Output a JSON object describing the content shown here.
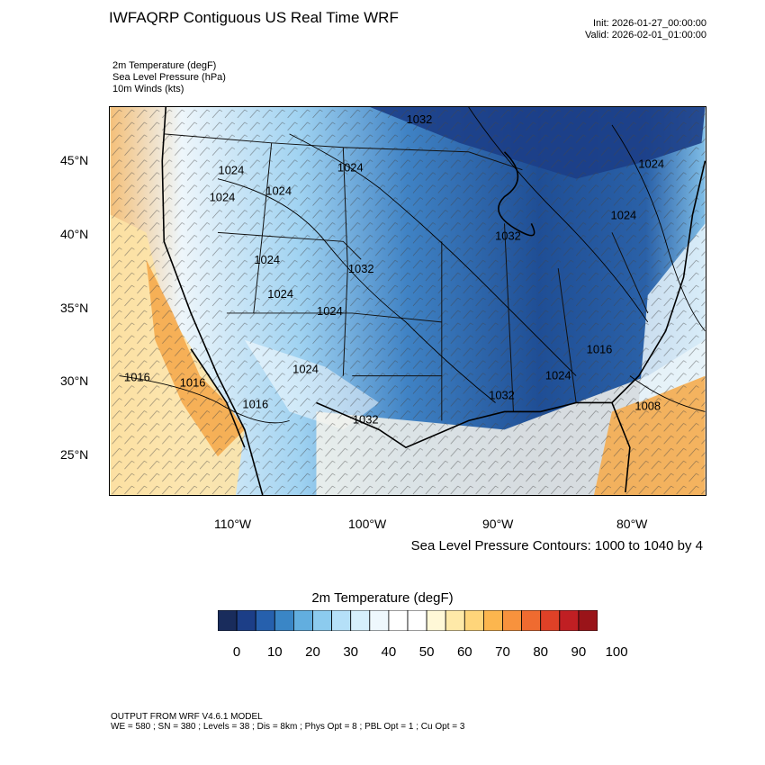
{
  "header": {
    "title": "IWFAQRP Contiguous US Real Time WRF",
    "init": "Init: 2026-01-27_00:00:00",
    "valid": "Valid: 2026-02-01_01:00:00"
  },
  "fields": [
    "2m Temperature   (degF)",
    "Sea Level Pressure   (hPa)",
    "10m Winds   (kts)"
  ],
  "axes": {
    "lat_labels": [
      "45°N",
      "40°N",
      "35°N",
      "30°N",
      "25°N"
    ],
    "lon_labels": [
      "110°W",
      "100°W",
      "90°W",
      "80°W"
    ]
  },
  "map": {
    "pressure_labels": [
      {
        "text": "1032"
      },
      {
        "text": "1024"
      },
      {
        "text": "1024"
      },
      {
        "text": "1024"
      },
      {
        "text": "1024"
      },
      {
        "text": "1024"
      },
      {
        "text": "1024"
      },
      {
        "text": "1032"
      },
      {
        "text": "1032"
      },
      {
        "text": "1024"
      },
      {
        "text": "1024"
      },
      {
        "text": "1024"
      },
      {
        "text": "1024"
      },
      {
        "text": "1016"
      },
      {
        "text": "1016"
      },
      {
        "text": "1016"
      },
      {
        "text": "1016"
      },
      {
        "text": "1032"
      },
      {
        "text": "1032"
      },
      {
        "text": "1024"
      },
      {
        "text": "1008"
      }
    ]
  },
  "slp_note": "Sea Level Pressure Contours: 1000 to 1040 by 4",
  "colorbar": {
    "title": "2m Temperature  (degF)",
    "colors": [
      "#192c5c",
      "#1c3e87",
      "#2660ad",
      "#3a86c6",
      "#62aedf",
      "#8ccbee",
      "#b5e0f8",
      "#d6effb",
      "#eef8fd",
      "#ffffff",
      "#ffffff",
      "#fff8d7",
      "#fee9a8",
      "#fed57a",
      "#fcb64e",
      "#f8923d",
      "#ef6b30",
      "#df4127",
      "#c01f23",
      "#9a1419"
    ],
    "labels": [
      "0",
      "10",
      "20",
      "30",
      "40",
      "50",
      "60",
      "70",
      "80",
      "90",
      "100"
    ]
  },
  "footer": {
    "model": "OUTPUT FROM WRF V4.6.1 MODEL",
    "config": "WE = 580 ; SN = 380 ; Levels = 38 ; Dis = 8km ; Phys Opt = 8 ; PBL Opt = 1 ; Cu Opt = 3"
  }
}
